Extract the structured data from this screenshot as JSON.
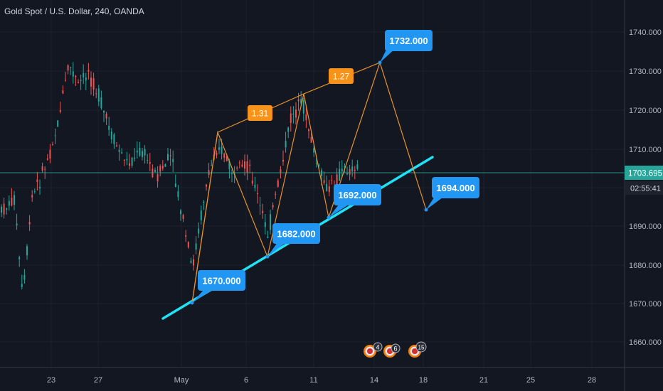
{
  "title": "Gold Spot / U.S. Dollar, 240, OANDA",
  "price_axis": {
    "ticks": [
      "1740.000",
      "1730.000",
      "1720.000",
      "1710.000",
      "1690.000",
      "1680.000",
      "1670.000",
      "1660.000"
    ],
    "current_price": "1703.695",
    "countdown": "02:55:41"
  },
  "time_axis": {
    "ticks": [
      "23",
      "27",
      "May",
      "6",
      "11",
      "14",
      "18",
      "21",
      "25",
      "28"
    ]
  },
  "callouts": [
    "1670.000",
    "1682.000",
    "1692.000",
    "1732.000",
    "1694.000"
  ],
  "ratios": [
    "1.31",
    "1.27"
  ],
  "event_badges": [
    "4",
    "6",
    "15"
  ],
  "colors": {
    "background": "#131722",
    "up_candle": "#26a69a",
    "down_candle": "#ef5350",
    "trendline": "#1fe3f5",
    "pattern": "#e8912a",
    "callout": "#2196f3",
    "ratio_box": "#f7931a",
    "price_line": "#26a69a"
  },
  "chart_data": {
    "type": "candlestick",
    "symbol": "XAUUSD",
    "interval": "240",
    "ylim": [
      1653,
      1746
    ],
    "last_price": 1703.695,
    "harmonic_pattern": {
      "points": [
        {
          "label": "1670.000",
          "value": 1670
        },
        {
          "value": 1714
        },
        {
          "label": "1682.000",
          "value": 1682
        },
        {
          "value": 1724
        },
        {
          "label": "1692.000",
          "value": 1692
        },
        {
          "label": "1732.000",
          "value": 1732
        },
        {
          "label": "1694.000",
          "value": 1694
        }
      ],
      "ratios": [
        "1.31",
        "1.27"
      ]
    },
    "trendline": {
      "from": 1666,
      "to": 1707
    }
  }
}
